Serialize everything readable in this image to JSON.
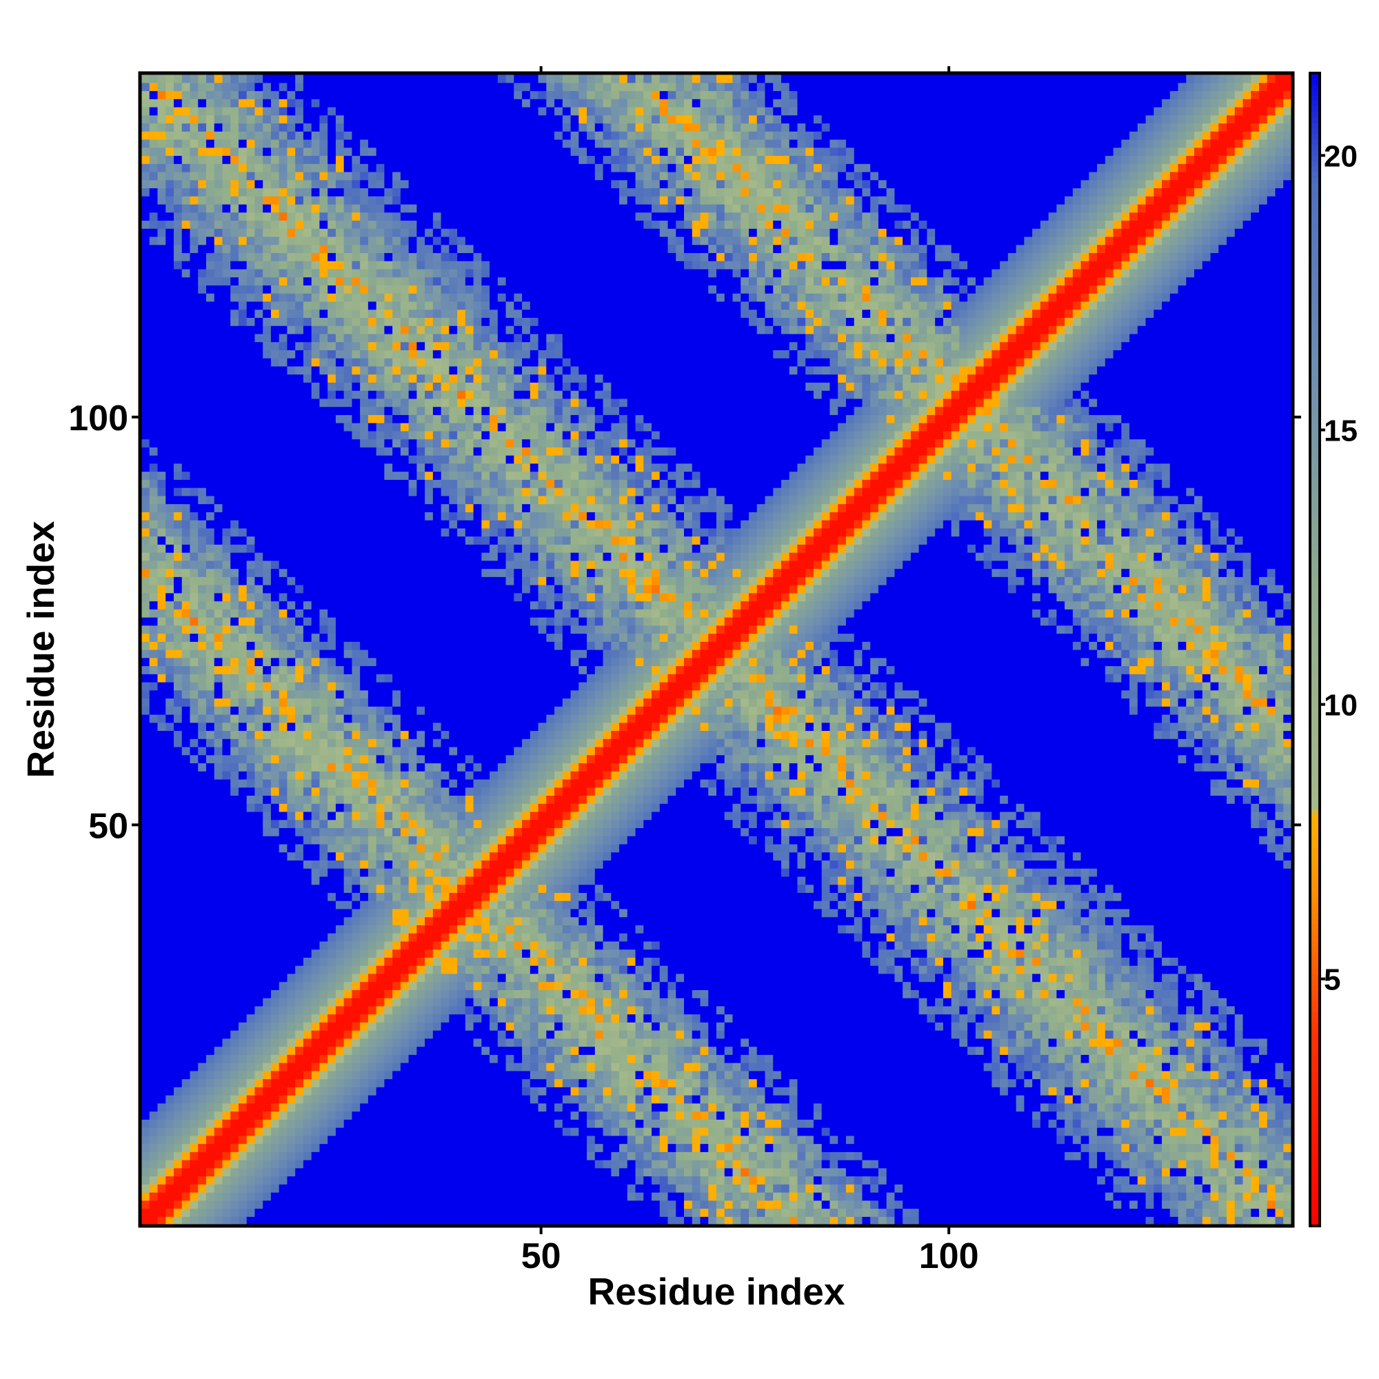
{
  "chart_data": {
    "type": "heatmap",
    "title": "",
    "xlabel": "Residue index",
    "ylabel": "Residue index",
    "n_residues": 142,
    "xlim": [
      1,
      142
    ],
    "ylim": [
      1,
      142
    ],
    "x_ticks": [
      50,
      100
    ],
    "y_ticks": [
      50,
      100
    ],
    "x_tick_labels": [
      "50",
      "100"
    ],
    "y_tick_labels": [
      "50",
      "100"
    ],
    "grid": false,
    "legend": "colorbar-right",
    "colorbar": {
      "range": [
        0.5,
        21.5
      ],
      "ticks": [
        5,
        10,
        15,
        20
      ],
      "tick_labels": [
        "5",
        "10",
        "15",
        "20"
      ],
      "stops": [
        {
          "value": 0.5,
          "color": "#ff0000"
        },
        {
          "value": 4.0,
          "color": "#ff3300"
        },
        {
          "value": 6.5,
          "color": "#ff8c00"
        },
        {
          "value": 8.0,
          "color": "#ffb000"
        },
        {
          "value": 8.1,
          "color": "#a6b98a"
        },
        {
          "value": 12.0,
          "color": "#90ad8c"
        },
        {
          "value": 16.0,
          "color": "#6f8fb0"
        },
        {
          "value": 19.5,
          "color": "#4f6fbf"
        },
        {
          "value": 21.5,
          "color": "#0000ee"
        }
      ]
    },
    "value_meaning": "pairwise residue distance; cells beyond cutoff shown blue",
    "structure": {
      "diagonal_band_halfwidth": 12,
      "antidiagonal_bands": [
        {
          "center_sum": 143,
          "halfwidth": 14
        },
        {
          "center_sum": 82,
          "halfwidth": 12
        },
        {
          "center_sum": 204,
          "halfwidth": 12
        }
      ],
      "cutoff": 20
    },
    "colors": {
      "background_cell": "#0000ee",
      "near": "#ff0000",
      "frame": "#000000"
    }
  }
}
